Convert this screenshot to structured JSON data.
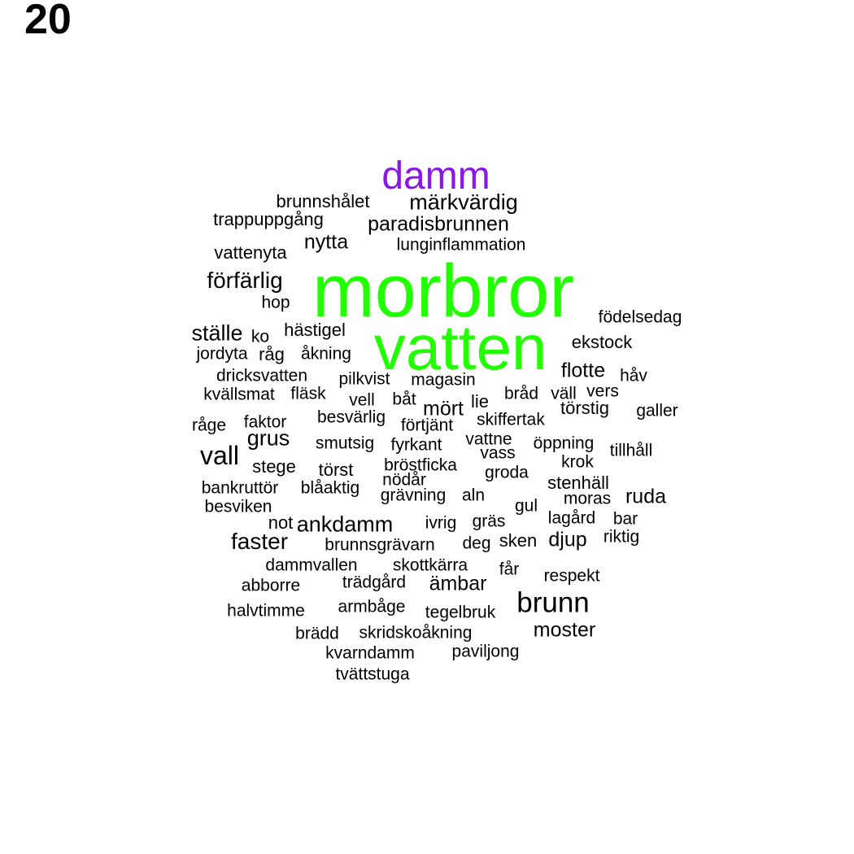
{
  "panel_number": "20",
  "colors": {
    "top": "#22ff00",
    "second": "#8a17e8",
    "default": "#000000"
  },
  "words": [
    {
      "text": "morbror",
      "tier": "top"
    },
    {
      "text": "vatten",
      "tier": "top"
    },
    {
      "text": "damm",
      "tier": "second"
    },
    {
      "text": "brunnshålet"
    },
    {
      "text": "märkvärdig"
    },
    {
      "text": "trappuppgång"
    },
    {
      "text": "paradisbrunnen"
    },
    {
      "text": "nytta"
    },
    {
      "text": "lunginflammation"
    },
    {
      "text": "vattenyta"
    },
    {
      "text": "förfärlig"
    },
    {
      "text": "hop"
    },
    {
      "text": "födelsedag"
    },
    {
      "text": "ställe"
    },
    {
      "text": "ko"
    },
    {
      "text": "hästigel"
    },
    {
      "text": "ekstock"
    },
    {
      "text": "jordyta"
    },
    {
      "text": "råg"
    },
    {
      "text": "åkning"
    },
    {
      "text": "flotte"
    },
    {
      "text": "dricksvatten"
    },
    {
      "text": "pilkvist"
    },
    {
      "text": "magasin"
    },
    {
      "text": "håv"
    },
    {
      "text": "kvällsmat"
    },
    {
      "text": "fläsk"
    },
    {
      "text": "vell"
    },
    {
      "text": "båt"
    },
    {
      "text": "bråd"
    },
    {
      "text": "väll"
    },
    {
      "text": "vers"
    },
    {
      "text": "mört"
    },
    {
      "text": "lie"
    },
    {
      "text": "törstig"
    },
    {
      "text": "galler"
    },
    {
      "text": "råge"
    },
    {
      "text": "faktor"
    },
    {
      "text": "besvärlig"
    },
    {
      "text": "förtjänt"
    },
    {
      "text": "skiffertak"
    },
    {
      "text": "grus"
    },
    {
      "text": "vattne"
    },
    {
      "text": "smutsig"
    },
    {
      "text": "fyrkant"
    },
    {
      "text": "öppning"
    },
    {
      "text": "vall"
    },
    {
      "text": "vass"
    },
    {
      "text": "tillhåll"
    },
    {
      "text": "stege"
    },
    {
      "text": "bröstficka"
    },
    {
      "text": "krok"
    },
    {
      "text": "törst"
    },
    {
      "text": "groda"
    },
    {
      "text": "nödår"
    },
    {
      "text": "stenhäll"
    },
    {
      "text": "bankruttör"
    },
    {
      "text": "blåaktig"
    },
    {
      "text": "grävning"
    },
    {
      "text": "aln"
    },
    {
      "text": "moras"
    },
    {
      "text": "ruda"
    },
    {
      "text": "besviken"
    },
    {
      "text": "gul"
    },
    {
      "text": "not"
    },
    {
      "text": "ankdamm"
    },
    {
      "text": "ivrig"
    },
    {
      "text": "gräs"
    },
    {
      "text": "lagård"
    },
    {
      "text": "bar"
    },
    {
      "text": "faster"
    },
    {
      "text": "brunnsgrävarn"
    },
    {
      "text": "deg"
    },
    {
      "text": "sken"
    },
    {
      "text": "djup"
    },
    {
      "text": "riktig"
    },
    {
      "text": "dammvallen"
    },
    {
      "text": "skottkärra"
    },
    {
      "text": "får"
    },
    {
      "text": "respekt"
    },
    {
      "text": "abborre"
    },
    {
      "text": "trädgård"
    },
    {
      "text": "ämbar"
    },
    {
      "text": "brunn"
    },
    {
      "text": "halvtimme"
    },
    {
      "text": "armbåge"
    },
    {
      "text": "tegelbruk"
    },
    {
      "text": "brädd"
    },
    {
      "text": "skridskoåkning"
    },
    {
      "text": "moster"
    },
    {
      "text": "kvarndamm"
    },
    {
      "text": "paviljong"
    },
    {
      "text": "tvättstuga"
    }
  ]
}
